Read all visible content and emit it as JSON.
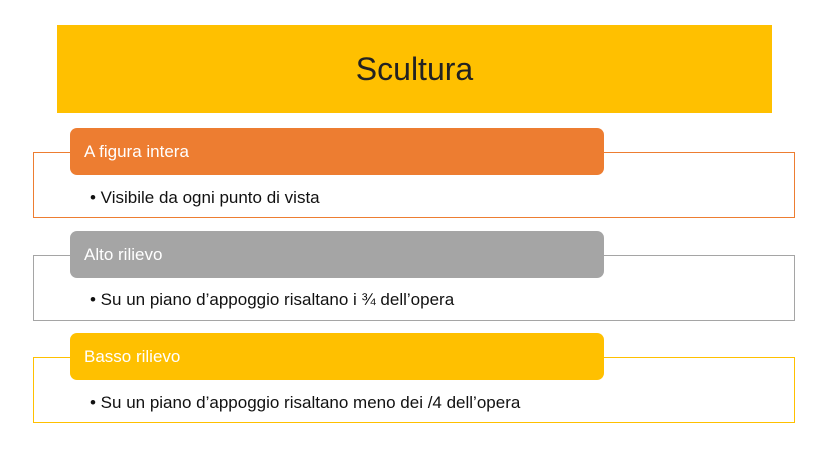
{
  "title": "Scultura",
  "colors": {
    "title": "#FFC000",
    "item1": "#ED7D31",
    "item2": "#A5A5A5",
    "item3": "#FFC000"
  },
  "items": [
    {
      "label": "A figura intera",
      "bullet": "• Visibile da ogni punto di vista"
    },
    {
      "label": "Alto rilievo",
      "bullet": "• Su un piano d’appoggio risaltano i ¾ dell’opera"
    },
    {
      "label": "Basso rilievo",
      "bullet": "• Su un piano d’appoggio risaltano meno dei /4 dell’opera"
    }
  ]
}
